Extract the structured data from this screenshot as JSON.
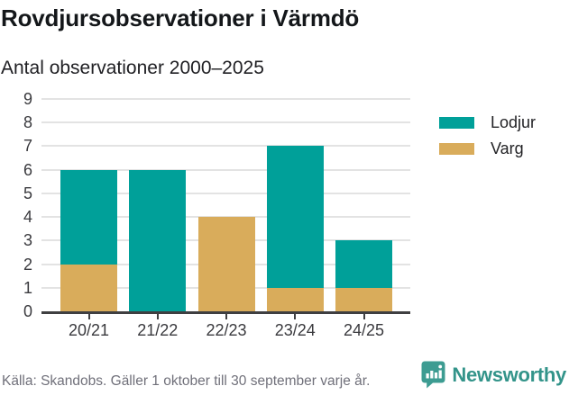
{
  "header": {
    "title": "Rovdjursobservationer i Värmdö",
    "subtitle": "Antal observationer 2000–2025"
  },
  "chart_data": {
    "type": "bar",
    "stacked": true,
    "title": "Rovdjursobservationer i Värmdö",
    "subtitle": "Antal observationer 2000–2025",
    "categories": [
      "20/21",
      "21/22",
      "22/23",
      "23/24",
      "24/25"
    ],
    "series": [
      {
        "name": "Lodjur",
        "color": "#00A099",
        "values": [
          4,
          6,
          0,
          6,
          2
        ]
      },
      {
        "name": "Varg",
        "color": "#D9AC5B",
        "values": [
          2,
          0,
          4,
          1,
          1
        ]
      }
    ],
    "stack_order_bottom_to_top": [
      "Varg",
      "Lodjur"
    ],
    "totals": [
      6,
      6,
      4,
      7,
      3
    ],
    "xlabel": "",
    "ylabel": "",
    "ylim": [
      0,
      9
    ],
    "yticks": [
      0,
      1,
      2,
      3,
      4,
      5,
      6,
      7,
      8,
      9
    ],
    "grid": true,
    "legend_position": "right"
  },
  "footer": {
    "source": "Källa: Skandobs. Gäller 1 oktober till 30 september varje år.",
    "brand": "Newsworthy"
  },
  "colors": {
    "lodjur": "#00A099",
    "varg": "#D9AC5B",
    "axis": "#3F3F41",
    "gridline": "#E3E3E3",
    "brand_teal": "#33948A",
    "brand_icon": "#3D9C92"
  }
}
